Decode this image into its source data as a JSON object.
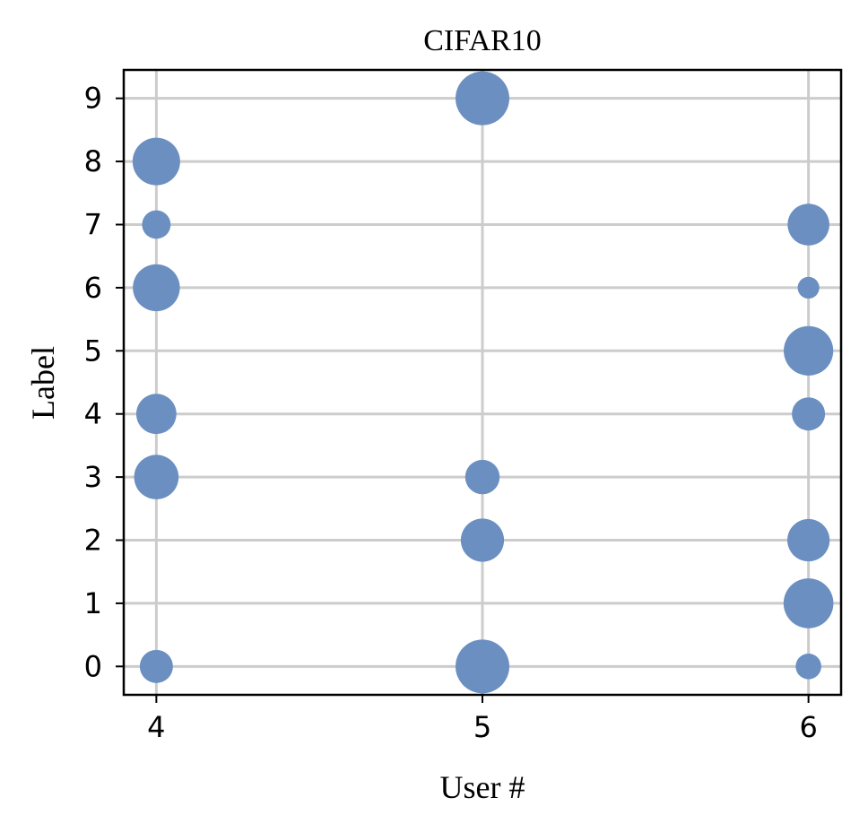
{
  "chart_data": {
    "type": "scatter",
    "title": "CIFAR10",
    "xlabel": "User #",
    "ylabel": "Label",
    "x_ticks": [
      4,
      5,
      6
    ],
    "y_ticks": [
      0,
      1,
      2,
      3,
      4,
      5,
      6,
      7,
      8,
      9
    ],
    "xlim": [
      3.9,
      6.1
    ],
    "ylim": [
      -0.45,
      9.45
    ],
    "grid": true,
    "marker_color": "#6b8fc0",
    "size_note": "marker area encodes relative sample count (unlabeled)",
    "points": [
      {
        "x": 4,
        "y": 0,
        "size": 0.25
      },
      {
        "x": 4,
        "y": 3,
        "size": 0.6
      },
      {
        "x": 4,
        "y": 4,
        "size": 0.45
      },
      {
        "x": 4,
        "y": 6,
        "size": 0.7
      },
      {
        "x": 4,
        "y": 7,
        "size": 0.15
      },
      {
        "x": 4,
        "y": 8,
        "size": 0.72
      },
      {
        "x": 5,
        "y": 0,
        "size": 1.0
      },
      {
        "x": 5,
        "y": 2,
        "size": 0.55
      },
      {
        "x": 5,
        "y": 3,
        "size": 0.28
      },
      {
        "x": 5,
        "y": 9,
        "size": 1.0
      },
      {
        "x": 6,
        "y": 0,
        "size": 0.1
      },
      {
        "x": 6,
        "y": 1,
        "size": 0.82
      },
      {
        "x": 6,
        "y": 2,
        "size": 0.52
      },
      {
        "x": 6,
        "y": 4,
        "size": 0.25
      },
      {
        "x": 6,
        "y": 5,
        "size": 0.8
      },
      {
        "x": 6,
        "y": 6,
        "size": 0.05
      },
      {
        "x": 6,
        "y": 7,
        "size": 0.5
      }
    ]
  }
}
